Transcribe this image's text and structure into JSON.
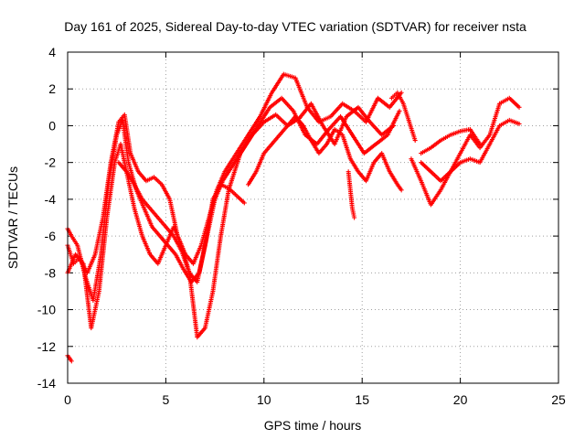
{
  "chart_data": {
    "type": "scatter",
    "title": "Day 161 of 2025, Sidereal Day-to-day VTEC variation (SDTVAR) for receiver nsta",
    "xlabel": "GPS time / hours",
    "ylabel": "SDTVAR / TECUs",
    "xlim": [
      0,
      25
    ],
    "ylim": [
      -14,
      4
    ],
    "xticks": [
      0,
      5,
      10,
      15,
      20,
      25
    ],
    "yticks": [
      -14,
      -12,
      -10,
      -8,
      -6,
      -4,
      -2,
      0,
      2,
      4
    ],
    "grid": true,
    "marker": "plus",
    "color": "#ff0000",
    "series": [
      {
        "name": "track-1",
        "x": [
          0.0,
          0.3,
          0.6,
          1.0,
          1.4,
          1.8,
          2.2,
          2.6,
          2.9,
          3.2,
          3.6,
          4.0,
          4.4,
          4.8,
          5.2,
          5.6,
          6.0,
          6.4,
          6.8,
          7.2,
          7.6,
          8.0,
          8.6,
          9.2,
          9.8,
          10.4,
          11.0,
          11.6,
          12.2,
          12.8,
          13.4,
          14.0,
          14.6,
          15.2,
          15.8,
          16.4,
          17.0
        ],
        "y": [
          -6.5,
          -7.5,
          -7.2,
          -8.0,
          -7.0,
          -5.0,
          -2.0,
          0.2,
          0.6,
          -1.5,
          -2.5,
          -3.0,
          -2.8,
          -3.2,
          -4.0,
          -6.0,
          -7.0,
          -7.5,
          -6.5,
          -5.0,
          -3.5,
          -2.5,
          -1.5,
          -0.5,
          0.5,
          1.8,
          2.8,
          2.6,
          1.0,
          0.2,
          0.5,
          1.2,
          0.8,
          0.2,
          1.5,
          1.0,
          1.8
        ]
      },
      {
        "name": "track-2",
        "x": [
          0.0,
          0.2,
          0.5,
          0.9,
          1.3,
          1.7,
          2.1,
          2.5,
          2.8,
          3.1,
          3.5,
          3.9,
          4.3,
          4.7,
          5.1,
          5.5,
          5.9,
          6.3,
          6.7,
          7.1,
          7.5,
          7.9,
          8.5,
          9.1,
          9.7,
          10.3,
          10.9,
          11.5,
          12.1,
          12.7,
          13.3,
          13.9,
          14.5,
          15.1,
          15.7,
          16.3,
          16.9
        ],
        "y": [
          -5.6,
          -6.0,
          -6.5,
          -8.2,
          -9.5,
          -7.0,
          -3.0,
          -0.5,
          0.3,
          -2.0,
          -3.5,
          -4.5,
          -5.5,
          -6.0,
          -6.5,
          -7.0,
          -7.8,
          -8.5,
          -8.0,
          -6.0,
          -4.0,
          -3.0,
          -2.0,
          -1.0,
          0.0,
          1.0,
          1.5,
          0.8,
          -0.5,
          -1.0,
          -0.2,
          0.5,
          -0.5,
          -1.5,
          -1.0,
          -0.5,
          0.8
        ]
      },
      {
        "name": "track-3",
        "x": [
          0.0,
          0.2,
          0.4,
          0.8,
          1.2,
          1.6,
          2.0,
          2.4,
          2.7,
          3.0,
          3.4,
          3.8,
          4.2,
          4.6,
          5.0,
          5.4,
          5.8,
          6.2,
          6.6,
          7.0,
          7.4,
          7.8,
          8.2,
          8.8,
          9.4,
          10.0,
          10.6,
          11.2,
          11.8,
          12.4,
          13.0,
          13.6,
          14.2,
          14.8,
          15.4,
          16.0,
          16.6
        ],
        "y": [
          -8.0,
          -7.5,
          -7.0,
          -7.5,
          -11.0,
          -9.0,
          -5.0,
          -2.0,
          -1.0,
          -2.5,
          -4.5,
          -6.0,
          -7.0,
          -7.5,
          -6.5,
          -5.5,
          -6.5,
          -8.0,
          -11.5,
          -11.0,
          -9.0,
          -6.0,
          -3.5,
          -1.5,
          -0.5,
          0.2,
          0.6,
          0.0,
          0.4,
          1.2,
          0.0,
          -1.0,
          0.5,
          1.0,
          0.2,
          -0.5,
          0.0
        ]
      },
      {
        "name": "track-4",
        "x": [
          2.6,
          3.0,
          3.4,
          3.8,
          4.2,
          4.6,
          5.0,
          5.4,
          5.8,
          6.2,
          6.6,
          7.0,
          7.4,
          7.8,
          8.2,
          8.6,
          9.0
        ],
        "y": [
          -2.0,
          -2.5,
          -3.2,
          -4.0,
          -4.5,
          -5.0,
          -5.5,
          -6.0,
          -6.8,
          -8.0,
          -8.5,
          -6.5,
          -4.0,
          -3.2,
          -3.4,
          -3.8,
          -4.2
        ]
      },
      {
        "name": "track-5",
        "x": [
          9.2,
          9.6,
          10.0,
          10.4,
          10.8,
          11.2,
          11.6,
          12.0,
          12.4,
          12.8,
          13.2,
          13.6,
          14.0,
          14.4,
          14.8,
          15.2,
          15.6,
          16.0,
          16.4,
          16.8,
          17.0
        ],
        "y": [
          -3.2,
          -2.5,
          -1.5,
          -1.0,
          -0.5,
          0.0,
          0.5,
          0.0,
          -0.8,
          -1.5,
          -1.0,
          -0.2,
          -0.5,
          -1.8,
          -2.5,
          -3.0,
          -2.0,
          -1.5,
          -2.5,
          -3.2,
          -3.5
        ]
      },
      {
        "name": "track-6",
        "x": [
          14.3,
          14.4,
          14.5,
          14.6
        ],
        "y": [
          -2.5,
          -3.5,
          -4.5,
          -5.0
        ]
      },
      {
        "name": "track-7",
        "x": [
          16.5,
          16.8,
          17.1,
          17.4,
          17.7
        ],
        "y": [
          1.5,
          1.8,
          1.2,
          0.2,
          -0.8
        ]
      },
      {
        "name": "track-8",
        "x": [
          18.0,
          18.5,
          19.0,
          19.5,
          20.0,
          20.5,
          21.0,
          21.5,
          22.0,
          22.5,
          23.0
        ],
        "y": [
          -2.0,
          -2.5,
          -3.0,
          -2.5,
          -1.5,
          -0.5,
          -1.2,
          -0.5,
          1.2,
          1.5,
          1.0
        ]
      },
      {
        "name": "track-9",
        "x": [
          17.5,
          18.0,
          18.5,
          19.0,
          19.5,
          20.0,
          20.5,
          21.0,
          21.5,
          22.0,
          22.5,
          23.0
        ],
        "y": [
          -1.8,
          -3.0,
          -4.3,
          -3.5,
          -2.5,
          -2.0,
          -1.8,
          -2.0,
          -1.0,
          0.0,
          0.3,
          0.1
        ]
      },
      {
        "name": "track-10",
        "x": [
          18.0,
          18.5,
          19.0,
          19.5,
          20.0,
          20.5,
          21.0
        ],
        "y": [
          -1.5,
          -1.2,
          -0.8,
          -0.5,
          -0.3,
          -0.2,
          -1.0
        ]
      },
      {
        "name": "track-11",
        "x": [
          0.0,
          0.2
        ],
        "y": [
          -12.5,
          -12.8
        ]
      }
    ]
  }
}
